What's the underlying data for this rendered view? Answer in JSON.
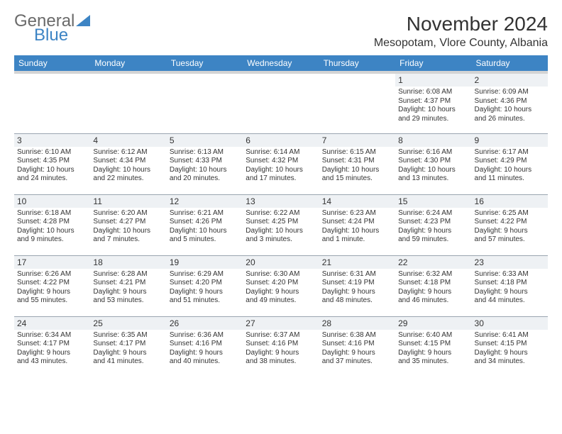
{
  "logo": {
    "top": "General",
    "bottom": "Blue",
    "tri_color": "#3d84c4"
  },
  "title": "November 2024",
  "location": "Mesopotam, Vlore County, Albania",
  "dayHeaders": [
    "Sunday",
    "Monday",
    "Tuesday",
    "Wednesday",
    "Thursday",
    "Friday",
    "Saturday"
  ],
  "colors": {
    "header_bg": "#3d84c4",
    "header_fg": "#ffffff",
    "daynum_bg": "#eef1f4",
    "rule": "#9aa5b0"
  },
  "weeks": [
    [
      {
        "num": "",
        "lines": []
      },
      {
        "num": "",
        "lines": []
      },
      {
        "num": "",
        "lines": []
      },
      {
        "num": "",
        "lines": []
      },
      {
        "num": "",
        "lines": []
      },
      {
        "num": "1",
        "lines": [
          "Sunrise: 6:08 AM",
          "Sunset: 4:37 PM",
          "Daylight: 10 hours",
          "and 29 minutes."
        ]
      },
      {
        "num": "2",
        "lines": [
          "Sunrise: 6:09 AM",
          "Sunset: 4:36 PM",
          "Daylight: 10 hours",
          "and 26 minutes."
        ]
      }
    ],
    [
      {
        "num": "3",
        "lines": [
          "Sunrise: 6:10 AM",
          "Sunset: 4:35 PM",
          "Daylight: 10 hours",
          "and 24 minutes."
        ]
      },
      {
        "num": "4",
        "lines": [
          "Sunrise: 6:12 AM",
          "Sunset: 4:34 PM",
          "Daylight: 10 hours",
          "and 22 minutes."
        ]
      },
      {
        "num": "5",
        "lines": [
          "Sunrise: 6:13 AM",
          "Sunset: 4:33 PM",
          "Daylight: 10 hours",
          "and 20 minutes."
        ]
      },
      {
        "num": "6",
        "lines": [
          "Sunrise: 6:14 AM",
          "Sunset: 4:32 PM",
          "Daylight: 10 hours",
          "and 17 minutes."
        ]
      },
      {
        "num": "7",
        "lines": [
          "Sunrise: 6:15 AM",
          "Sunset: 4:31 PM",
          "Daylight: 10 hours",
          "and 15 minutes."
        ]
      },
      {
        "num": "8",
        "lines": [
          "Sunrise: 6:16 AM",
          "Sunset: 4:30 PM",
          "Daylight: 10 hours",
          "and 13 minutes."
        ]
      },
      {
        "num": "9",
        "lines": [
          "Sunrise: 6:17 AM",
          "Sunset: 4:29 PM",
          "Daylight: 10 hours",
          "and 11 minutes."
        ]
      }
    ],
    [
      {
        "num": "10",
        "lines": [
          "Sunrise: 6:18 AM",
          "Sunset: 4:28 PM",
          "Daylight: 10 hours",
          "and 9 minutes."
        ]
      },
      {
        "num": "11",
        "lines": [
          "Sunrise: 6:20 AM",
          "Sunset: 4:27 PM",
          "Daylight: 10 hours",
          "and 7 minutes."
        ]
      },
      {
        "num": "12",
        "lines": [
          "Sunrise: 6:21 AM",
          "Sunset: 4:26 PM",
          "Daylight: 10 hours",
          "and 5 minutes."
        ]
      },
      {
        "num": "13",
        "lines": [
          "Sunrise: 6:22 AM",
          "Sunset: 4:25 PM",
          "Daylight: 10 hours",
          "and 3 minutes."
        ]
      },
      {
        "num": "14",
        "lines": [
          "Sunrise: 6:23 AM",
          "Sunset: 4:24 PM",
          "Daylight: 10 hours",
          "and 1 minute."
        ]
      },
      {
        "num": "15",
        "lines": [
          "Sunrise: 6:24 AM",
          "Sunset: 4:23 PM",
          "Daylight: 9 hours",
          "and 59 minutes."
        ]
      },
      {
        "num": "16",
        "lines": [
          "Sunrise: 6:25 AM",
          "Sunset: 4:22 PM",
          "Daylight: 9 hours",
          "and 57 minutes."
        ]
      }
    ],
    [
      {
        "num": "17",
        "lines": [
          "Sunrise: 6:26 AM",
          "Sunset: 4:22 PM",
          "Daylight: 9 hours",
          "and 55 minutes."
        ]
      },
      {
        "num": "18",
        "lines": [
          "Sunrise: 6:28 AM",
          "Sunset: 4:21 PM",
          "Daylight: 9 hours",
          "and 53 minutes."
        ]
      },
      {
        "num": "19",
        "lines": [
          "Sunrise: 6:29 AM",
          "Sunset: 4:20 PM",
          "Daylight: 9 hours",
          "and 51 minutes."
        ]
      },
      {
        "num": "20",
        "lines": [
          "Sunrise: 6:30 AM",
          "Sunset: 4:20 PM",
          "Daylight: 9 hours",
          "and 49 minutes."
        ]
      },
      {
        "num": "21",
        "lines": [
          "Sunrise: 6:31 AM",
          "Sunset: 4:19 PM",
          "Daylight: 9 hours",
          "and 48 minutes."
        ]
      },
      {
        "num": "22",
        "lines": [
          "Sunrise: 6:32 AM",
          "Sunset: 4:18 PM",
          "Daylight: 9 hours",
          "and 46 minutes."
        ]
      },
      {
        "num": "23",
        "lines": [
          "Sunrise: 6:33 AM",
          "Sunset: 4:18 PM",
          "Daylight: 9 hours",
          "and 44 minutes."
        ]
      }
    ],
    [
      {
        "num": "24",
        "lines": [
          "Sunrise: 6:34 AM",
          "Sunset: 4:17 PM",
          "Daylight: 9 hours",
          "and 43 minutes."
        ]
      },
      {
        "num": "25",
        "lines": [
          "Sunrise: 6:35 AM",
          "Sunset: 4:17 PM",
          "Daylight: 9 hours",
          "and 41 minutes."
        ]
      },
      {
        "num": "26",
        "lines": [
          "Sunrise: 6:36 AM",
          "Sunset: 4:16 PM",
          "Daylight: 9 hours",
          "and 40 minutes."
        ]
      },
      {
        "num": "27",
        "lines": [
          "Sunrise: 6:37 AM",
          "Sunset: 4:16 PM",
          "Daylight: 9 hours",
          "and 38 minutes."
        ]
      },
      {
        "num": "28",
        "lines": [
          "Sunrise: 6:38 AM",
          "Sunset: 4:16 PM",
          "Daylight: 9 hours",
          "and 37 minutes."
        ]
      },
      {
        "num": "29",
        "lines": [
          "Sunrise: 6:40 AM",
          "Sunset: 4:15 PM",
          "Daylight: 9 hours",
          "and 35 minutes."
        ]
      },
      {
        "num": "30",
        "lines": [
          "Sunrise: 6:41 AM",
          "Sunset: 4:15 PM",
          "Daylight: 9 hours",
          "and 34 minutes."
        ]
      }
    ]
  ]
}
